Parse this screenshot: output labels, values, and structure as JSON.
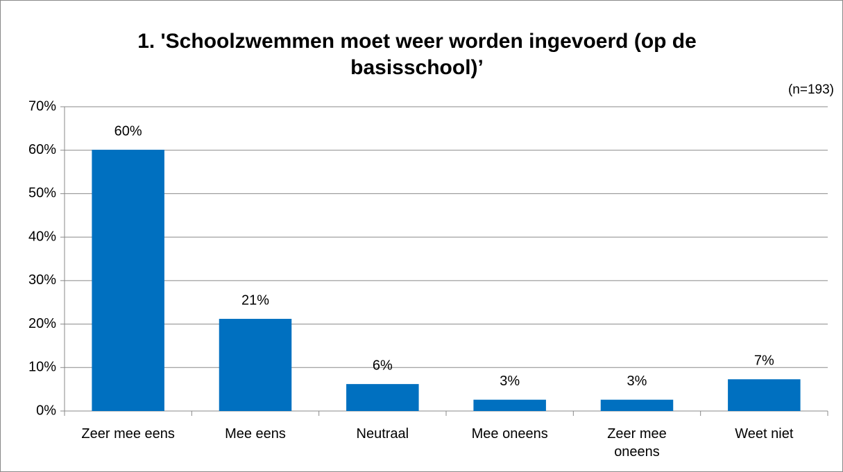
{
  "chart_data": {
    "type": "bar",
    "title": "1. 'Schoolzwemmen moet weer worden ingevoerd (op de basisschool)’",
    "subtitle": "(n=193)",
    "categories": [
      "Zeer mee eens",
      "Mee eens",
      "Neutraal",
      "Mee oneens",
      "Zeer mee oneens",
      "Weet niet"
    ],
    "values": [
      60.1,
      21.2,
      6.2,
      2.6,
      2.6,
      7.3
    ],
    "value_labels": [
      "60%",
      "21%",
      "6%",
      "3%",
      "3%",
      "7%"
    ],
    "color": "#0070c0",
    "ylim": [
      0,
      70
    ],
    "yticks": [
      {
        "value": 0,
        "label": "0%"
      },
      {
        "value": 10,
        "label": "10%"
      },
      {
        "value": 20,
        "label": "20%"
      },
      {
        "value": 30,
        "label": "30%"
      },
      {
        "value": 40,
        "label": "40%"
      },
      {
        "value": 50,
        "label": "50%"
      },
      {
        "value": 60,
        "label": "60%"
      },
      {
        "value": 70,
        "label": "70%"
      }
    ],
    "grid": true
  }
}
